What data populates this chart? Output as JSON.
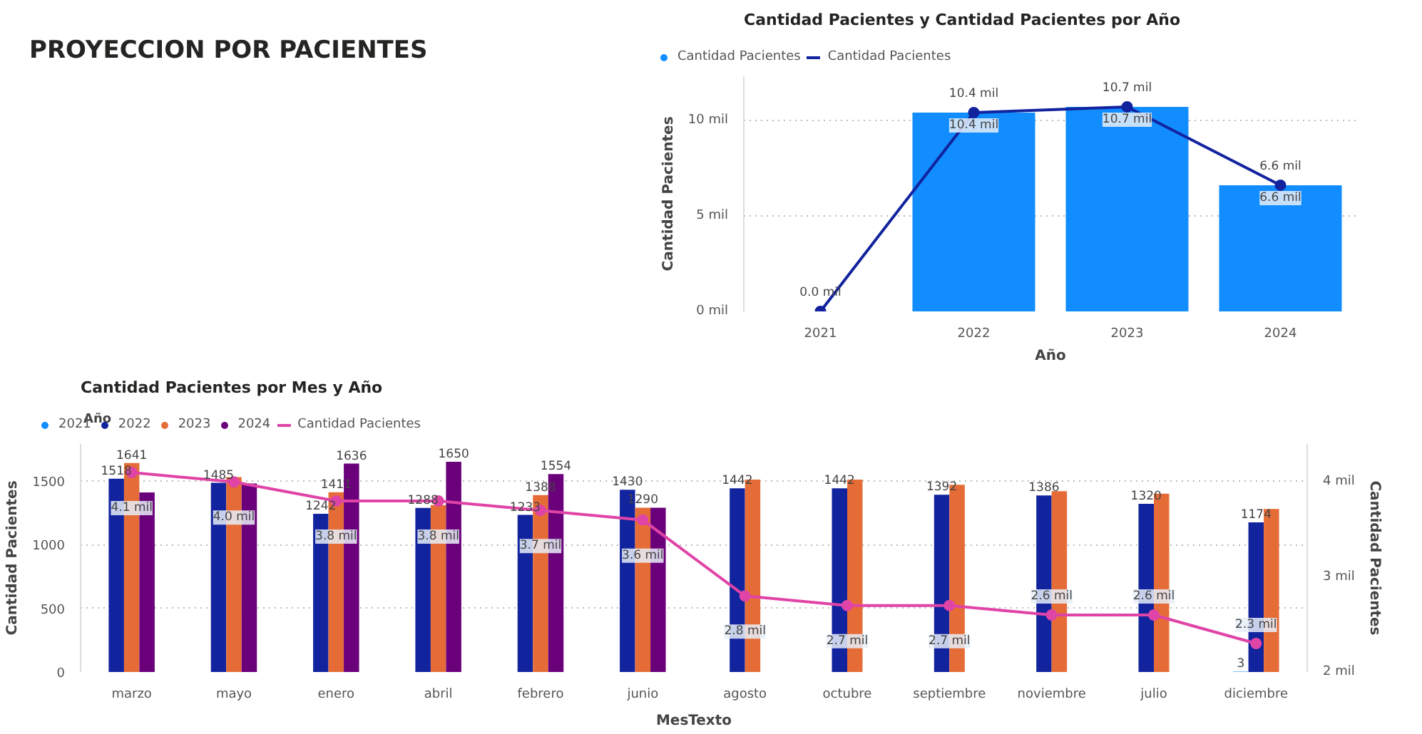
{
  "chart_data": [
    {
      "type": "other",
      "title": "PROYECCION POR PACIENTES"
    },
    {
      "type": "bar",
      "title": "Cantidad Pacientes y Cantidad Pacientes por Año",
      "xlabel": "Año",
      "ylabel": "Cantidad Pacientes",
      "categories": [
        "2021",
        "2022",
        "2023",
        "2024"
      ],
      "series": [
        {
          "name": "Cantidad Pacientes",
          "type": "bar",
          "color": "#118dff",
          "values": [
            0,
            10.4,
            10.7,
            6.6
          ],
          "value_labels": [
            null,
            "10.4 mil",
            "10.7 mil",
            "6.6 mil"
          ]
        },
        {
          "name": "Cantidad Pacientes",
          "type": "line",
          "color": "#12239e",
          "values": [
            0,
            10.4,
            10.7,
            6.6
          ],
          "value_labels": [
            "0.0 mil",
            "10.4 mil",
            "10.7 mil",
            "6.6 mil"
          ]
        }
      ],
      "ylim": [
        0,
        12.3
      ],
      "yticks": [
        {
          "value": 0,
          "label": "0 mil"
        },
        {
          "value": 5,
          "label": "5 mil"
        },
        {
          "value": 10,
          "label": "10 mil"
        }
      ],
      "grid": "y",
      "legend": "top left",
      "marker": "circle"
    },
    {
      "type": "bar",
      "title": "Cantidad Pacientes por Mes y Año",
      "xlabel": "MesTexto",
      "ylabel": "Cantidad Pacientes",
      "y2label": "Cantidad Pacientes",
      "legend_title": "Año",
      "categories": [
        "marzo",
        "mayo",
        "enero",
        "abril",
        "febrero",
        "junio",
        "agosto",
        "octubre",
        "septiembre",
        "noviembre",
        "julio",
        "diciembre"
      ],
      "series": [
        {
          "name": "2021",
          "type": "bar",
          "color": "#118dff",
          "values": [
            null,
            null,
            null,
            null,
            null,
            null,
            null,
            null,
            null,
            null,
            null,
            3
          ],
          "value_labels": [
            null,
            null,
            null,
            null,
            null,
            null,
            null,
            null,
            null,
            null,
            null,
            "3"
          ]
        },
        {
          "name": "2022",
          "type": "bar",
          "color": "#12239e",
          "values": [
            1518,
            1485,
            1242,
            1288,
            1233,
            1430,
            1442,
            1442,
            1392,
            1386,
            1320,
            1174
          ],
          "value_labels": [
            "1518",
            "1485",
            "1242",
            "1288",
            "1233",
            "1430",
            "1442",
            "1442",
            "1392",
            "1386",
            "1320",
            "1174"
          ]
        },
        {
          "name": "2023",
          "type": "bar",
          "color": "#e66c37",
          "values": [
            1641,
            1530,
            1411,
            1310,
            1388,
            1290,
            1510,
            1510,
            1470,
            1420,
            1400,
            1280
          ],
          "value_labels": [
            "1641",
            null,
            "1411",
            null,
            "1388",
            "1290",
            null,
            null,
            null,
            null,
            null,
            null
          ]
        },
        {
          "name": "2024",
          "type": "bar",
          "color": "#6b007b",
          "values": [
            1410,
            1480,
            1636,
            1650,
            1554,
            1290,
            null,
            null,
            null,
            null,
            null,
            null
          ],
          "value_labels": [
            null,
            null,
            "1636",
            "1650",
            "1554",
            null,
            null,
            null,
            null,
            null,
            null,
            null
          ]
        },
        {
          "name": "Cantidad Pacientes",
          "type": "line",
          "axis": "y2",
          "color": "#e044a7",
          "values": [
            4.1,
            4.0,
            3.8,
            3.8,
            3.7,
            3.6,
            2.8,
            2.7,
            2.7,
            2.6,
            2.6,
            2.3
          ],
          "value_labels": [
            "4.1 mil",
            "4.0 mil",
            "3.8 mil",
            "3.8 mil",
            "3.7 mil",
            "3.6 mil",
            "2.8 mil",
            "2.7 mil",
            "2.7 mil",
            "2.6 mil",
            "2.6 mil",
            "2.3 mil"
          ]
        }
      ],
      "ylim": [
        0,
        1790
      ],
      "yticks": [
        0,
        500,
        1000,
        1500
      ],
      "y2lim": [
        2,
        4.4
      ],
      "y2ticks": [
        {
          "value": 2,
          "label": "2 mil"
        },
        {
          "value": 3,
          "label": "3 mil"
        },
        {
          "value": 4,
          "label": "4 mil"
        }
      ],
      "grid": "y",
      "legend": "top left",
      "marker": "circle"
    }
  ]
}
